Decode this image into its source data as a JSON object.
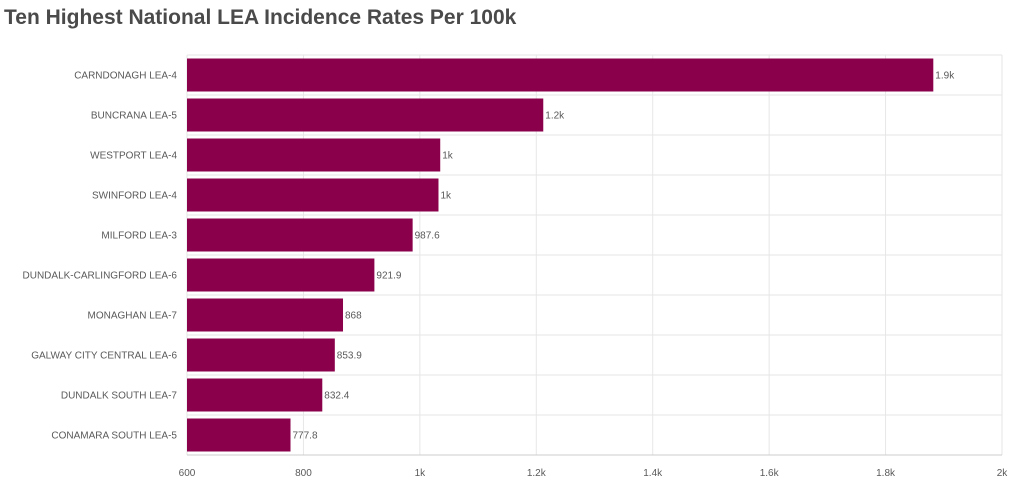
{
  "chart_data": {
    "type": "bar",
    "orientation": "horizontal",
    "title": "Ten Highest National LEA Incidence Rates Per 100k",
    "categories": [
      "CARNDONAGH LEA-4",
      "BUNCRANA LEA-5",
      "WESTPORT LEA-4",
      "SWINFORD LEA-4",
      "MILFORD LEA-3",
      "DUNDALK-CARLINGFORD LEA-6",
      "MONAGHAN LEA-7",
      "GALWAY CITY CENTRAL LEA-6",
      "DUNDALK SOUTH LEA-7",
      "CONAMARA SOUTH LEA-5"
    ],
    "values": [
      1882,
      1212,
      1035,
      1032,
      987.6,
      921.9,
      868,
      853.9,
      832.4,
      777.8
    ],
    "data_labels": [
      "1.9k",
      "1.2k",
      "1k",
      "1k",
      "987.6",
      "921.9",
      "868",
      "853.9",
      "832.4",
      "777.8"
    ],
    "xlim": [
      600,
      2000
    ],
    "x_ticks": [
      600,
      800,
      1000,
      1200,
      1400,
      1600,
      1800,
      2000
    ],
    "x_tick_labels": [
      "600",
      "800",
      "1k",
      "1.2k",
      "1.4k",
      "1.6k",
      "1.8k",
      "2k"
    ],
    "grid": true,
    "bar_color": "#8b004b",
    "grid_color": "#e6e6e6",
    "axis_color": "#cccccc"
  }
}
